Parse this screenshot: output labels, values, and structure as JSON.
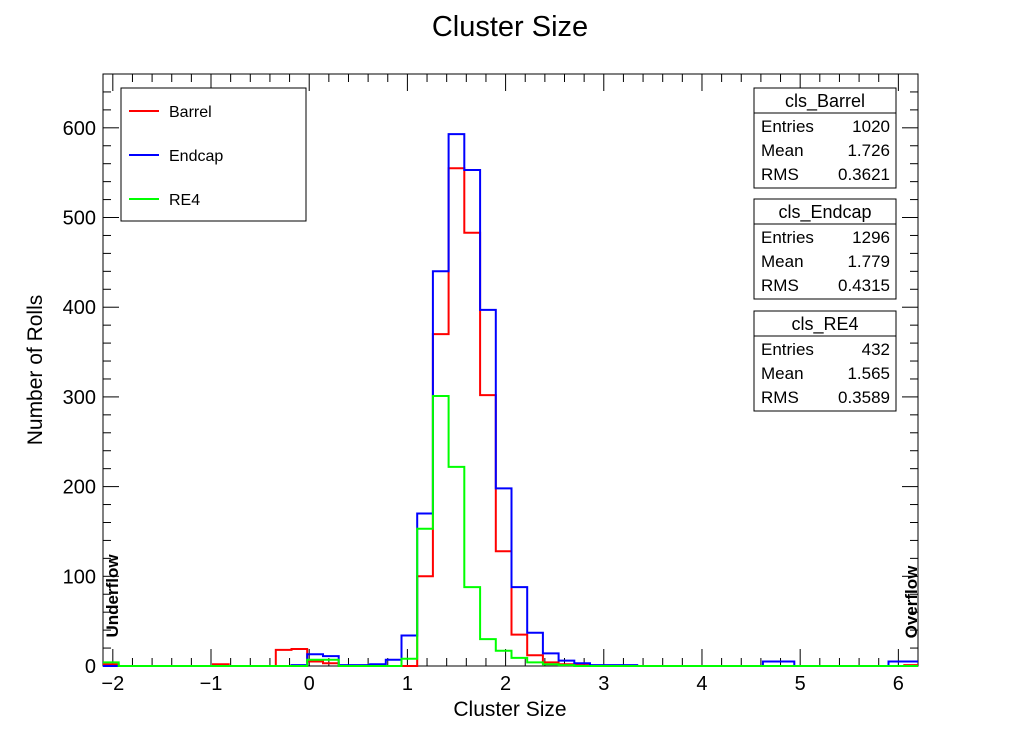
{
  "chart_data": {
    "type": "histogram",
    "title": "Cluster Size",
    "xlabel": "Cluster Size",
    "ylabel": "Number of Rolls",
    "xlim": [
      -2.1,
      6.2
    ],
    "ylim": [
      0,
      660
    ],
    "xticks": [
      "−2",
      "−1",
      "0",
      "1",
      "2",
      "3",
      "4",
      "5",
      "6"
    ],
    "yticks": [
      "0",
      "100",
      "200",
      "300",
      "400",
      "500",
      "600"
    ],
    "side_labels": {
      "left": "Underflow",
      "right": "Overflow"
    },
    "bin_width": 0.16,
    "legend": {
      "placement": "top-left",
      "entries": [
        {
          "label": "Barrel",
          "color": "#ff0000"
        },
        {
          "label": "Endcap",
          "color": "#0000ff"
        },
        {
          "label": "RE4",
          "color": "#00ff00"
        }
      ]
    },
    "stats": [
      {
        "name": "cls_Barrel",
        "rows": [
          [
            "Entries",
            "1020"
          ],
          [
            "Mean",
            "1.726"
          ],
          [
            "RMS",
            "0.3621"
          ]
        ]
      },
      {
        "name": "cls_Endcap",
        "rows": [
          [
            "Entries",
            "1296"
          ],
          [
            "Mean",
            "1.779"
          ],
          [
            "RMS",
            "0.4315"
          ]
        ]
      },
      {
        "name": "cls_RE4",
        "rows": [
          [
            "Entries",
            "432"
          ],
          [
            "Mean",
            "1.565"
          ],
          [
            "RMS",
            "0.3589"
          ]
        ]
      }
    ],
    "series": [
      {
        "name": "Barrel",
        "color": "#ff0000",
        "x": [
          -2.1,
          -1.94,
          -1.78,
          -1.62,
          -1.46,
          -1.3,
          -1.14,
          -0.98,
          -0.82,
          -0.66,
          -0.5,
          -0.34,
          -0.18,
          -0.02,
          0.14,
          0.3,
          0.46,
          0.62,
          0.78,
          0.94,
          1.1,
          1.26,
          1.42,
          1.58,
          1.74,
          1.9,
          2.06,
          2.22,
          2.38,
          2.54,
          2.7,
          2.86,
          3.02,
          3.18,
          3.34,
          3.5,
          3.66,
          3.82,
          3.98,
          4.14,
          4.3,
          4.46,
          4.62,
          4.78,
          4.94,
          5.1,
          5.26,
          5.42,
          5.58,
          5.74,
          5.9,
          6.06
        ],
        "values": [
          2,
          0,
          0,
          0,
          0,
          0,
          0,
          2,
          0,
          0,
          0,
          18,
          19,
          5,
          3,
          0,
          0,
          0,
          0,
          0,
          100,
          370,
          555,
          483,
          302,
          128,
          35,
          12,
          4,
          2,
          1,
          0,
          0,
          0,
          0,
          0,
          0,
          0,
          0,
          0,
          0,
          0,
          0,
          0,
          0,
          0,
          0,
          0,
          0,
          0,
          0,
          1
        ]
      },
      {
        "name": "Endcap",
        "color": "#0000ff",
        "x": [
          -2.1,
          -1.94,
          -1.78,
          -1.62,
          -1.46,
          -1.3,
          -1.14,
          -0.98,
          -0.82,
          -0.66,
          -0.5,
          -0.34,
          -0.18,
          -0.02,
          0.14,
          0.3,
          0.46,
          0.62,
          0.78,
          0.94,
          1.1,
          1.26,
          1.42,
          1.58,
          1.74,
          1.9,
          2.06,
          2.22,
          2.38,
          2.54,
          2.7,
          2.86,
          3.02,
          3.18,
          3.34,
          3.5,
          3.66,
          3.82,
          3.98,
          4.14,
          4.3,
          4.46,
          4.62,
          4.78,
          4.94,
          5.1,
          5.26,
          5.42,
          5.58,
          5.74,
          5.9,
          6.06
        ],
        "values": [
          0,
          0,
          0,
          0,
          0,
          0,
          0,
          0,
          0,
          0,
          0,
          0,
          1,
          13,
          11,
          1,
          1,
          2,
          7,
          34,
          170,
          440,
          593,
          553,
          397,
          198,
          88,
          37,
          14,
          6,
          3,
          1,
          1,
          1,
          0,
          0,
          0,
          0,
          0,
          0,
          0,
          0,
          5,
          5,
          0,
          0,
          0,
          0,
          0,
          0,
          5,
          5
        ]
      },
      {
        "name": "RE4",
        "color": "#00ff00",
        "x": [
          -2.1,
          -1.94,
          -1.78,
          -1.62,
          -1.46,
          -1.3,
          -1.14,
          -0.98,
          -0.82,
          -0.66,
          -0.5,
          -0.34,
          -0.18,
          -0.02,
          0.14,
          0.3,
          0.46,
          0.62,
          0.78,
          0.94,
          1.1,
          1.26,
          1.42,
          1.58,
          1.74,
          1.9,
          2.06,
          2.22,
          2.38,
          2.54,
          2.7,
          2.86,
          3.02,
          3.18,
          3.34,
          3.5,
          3.66,
          3.82,
          3.98,
          4.14,
          4.3,
          4.46,
          4.62,
          4.78,
          4.94,
          5.1,
          5.26,
          5.42,
          5.58,
          5.74,
          5.9,
          6.06
        ],
        "values": [
          4,
          0,
          0,
          0,
          0,
          0,
          0,
          0,
          0,
          0,
          0,
          0,
          0,
          7,
          7,
          0,
          0,
          0,
          0,
          8,
          153,
          301,
          222,
          88,
          30,
          17,
          9,
          4,
          2,
          1,
          0,
          0,
          0,
          0,
          0,
          0,
          0,
          0,
          0,
          0,
          0,
          0,
          0,
          0,
          0,
          0,
          0,
          0,
          0,
          0,
          0,
          0
        ]
      }
    ]
  }
}
